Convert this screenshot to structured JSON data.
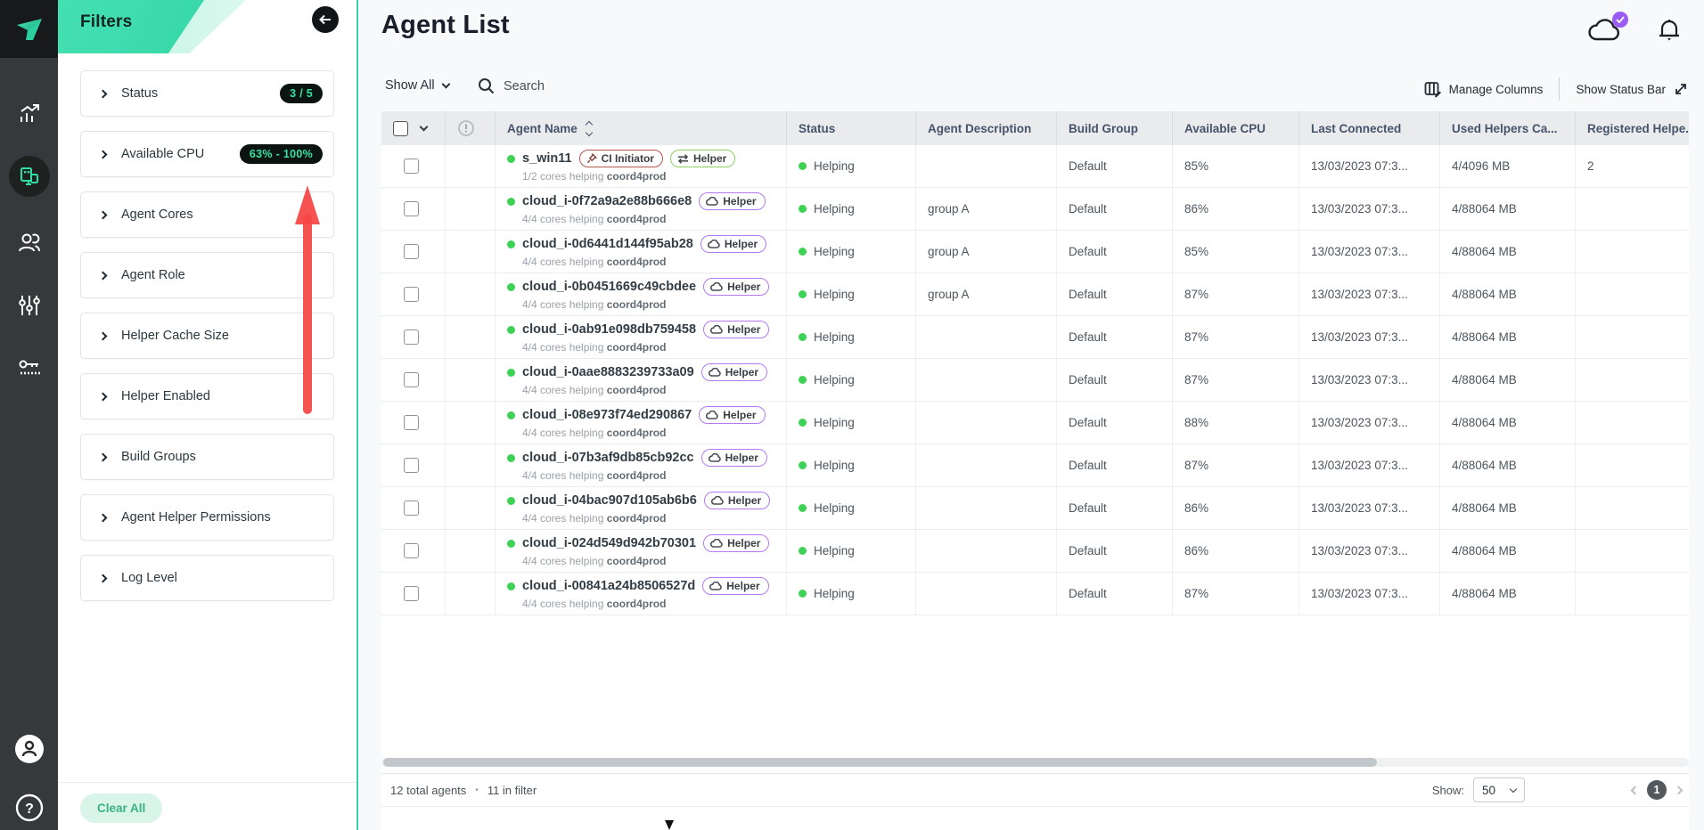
{
  "app": {
    "accent": "#35d9a6",
    "annotation_arrow_color": "#f54545",
    "badge_bg": "#0b1411",
    "badge_text": "#36e2a4",
    "status_green": "#3ed254",
    "helper_purple": "#b678f2",
    "helper_green": "#8ccf63",
    "ci_red": "#b3574a",
    "notification_badge_purple": "#9b5cf6"
  },
  "rail": {
    "items": [
      {
        "icon": "analytics-icon",
        "active": false
      },
      {
        "icon": "agents-icon",
        "active": true
      },
      {
        "icon": "users-icon",
        "active": false
      },
      {
        "icon": "sliders-icon",
        "active": false
      },
      {
        "icon": "api-keys-icon",
        "active": false
      }
    ],
    "bottom": [
      {
        "icon": "user-avatar-icon"
      },
      {
        "icon": "help-icon"
      }
    ]
  },
  "filters": {
    "title": "Filters",
    "clear_all": "Clear All",
    "items": [
      {
        "label": "Status",
        "badge": "3 / 5"
      },
      {
        "label": "Available CPU",
        "badge": "63% - 100%"
      },
      {
        "label": "Agent Cores",
        "badge": ""
      },
      {
        "label": "Agent Role",
        "badge": ""
      },
      {
        "label": "Helper Cache Size",
        "badge": ""
      },
      {
        "label": "Helper Enabled",
        "badge": ""
      },
      {
        "label": "Build Groups",
        "badge": ""
      },
      {
        "label": "Agent Helper Permissions",
        "badge": ""
      },
      {
        "label": "Log Level",
        "badge": ""
      }
    ]
  },
  "header": {
    "title": "Agent List"
  },
  "toolbar": {
    "show_all": "Show All",
    "search_placeholder": "Search",
    "manage_columns": "Manage Columns",
    "show_status_bar": "Show Status Bar"
  },
  "table": {
    "columns": [
      "",
      "",
      "Agent Name",
      "Status",
      "Agent Description",
      "Build Group",
      "Available CPU",
      "Last Connected",
      "Used Helpers Ca...",
      "Registered Helpe.."
    ],
    "rows": [
      {
        "name": "s_win11",
        "badges": [
          {
            "icon": "pin-icon",
            "label": "CI Initiator",
            "style": "ci"
          },
          {
            "icon": "swap-arrows-icon",
            "label": "Helper",
            "style": "hg"
          }
        ],
        "cores": "1/2 cores helping",
        "target": "coord4prod",
        "status": "Helping",
        "description": "",
        "build_group": "Default",
        "cpu": "85%",
        "last_connected": "13/03/2023 07:3...",
        "used_helpers": "4/4096 MB",
        "registered": "2"
      },
      {
        "name": "cloud_i-0f72a9a2e88b666e8",
        "badges": [
          {
            "icon": "cloud-icon",
            "label": "Helper",
            "style": "hp"
          }
        ],
        "cores": "4/4 cores helping",
        "target": "coord4prod",
        "status": "Helping",
        "description": "group A",
        "build_group": "Default",
        "cpu": "86%",
        "last_connected": "13/03/2023 07:3...",
        "used_helpers": "4/88064 MB",
        "registered": ""
      },
      {
        "name": "cloud_i-0d6441d144f95ab28",
        "badges": [
          {
            "icon": "cloud-icon",
            "label": "Helper",
            "style": "hp"
          }
        ],
        "cores": "4/4 cores helping",
        "target": "coord4prod",
        "status": "Helping",
        "description": "group A",
        "build_group": "Default",
        "cpu": "85%",
        "last_connected": "13/03/2023 07:3...",
        "used_helpers": "4/88064 MB",
        "registered": ""
      },
      {
        "name": "cloud_i-0b0451669c49cbdee",
        "badges": [
          {
            "icon": "cloud-icon",
            "label": "Helper",
            "style": "hp"
          }
        ],
        "cores": "4/4 cores helping",
        "target": "coord4prod",
        "status": "Helping",
        "description": "group A",
        "build_group": "Default",
        "cpu": "87%",
        "last_connected": "13/03/2023 07:3...",
        "used_helpers": "4/88064 MB",
        "registered": ""
      },
      {
        "name": "cloud_i-0ab91e098db759458",
        "badges": [
          {
            "icon": "cloud-icon",
            "label": "Helper",
            "style": "hp"
          }
        ],
        "cores": "4/4 cores helping",
        "target": "coord4prod",
        "status": "Helping",
        "description": "",
        "build_group": "Default",
        "cpu": "87%",
        "last_connected": "13/03/2023 07:3...",
        "used_helpers": "4/88064 MB",
        "registered": ""
      },
      {
        "name": "cloud_i-0aae8883239733a09",
        "badges": [
          {
            "icon": "cloud-icon",
            "label": "Helper",
            "style": "hp"
          }
        ],
        "cores": "4/4 cores helping",
        "target": "coord4prod",
        "status": "Helping",
        "description": "",
        "build_group": "Default",
        "cpu": "87%",
        "last_connected": "13/03/2023 07:3...",
        "used_helpers": "4/88064 MB",
        "registered": ""
      },
      {
        "name": "cloud_i-08e973f74ed290867",
        "badges": [
          {
            "icon": "cloud-icon",
            "label": "Helper",
            "style": "hp"
          }
        ],
        "cores": "4/4 cores helping",
        "target": "coord4prod",
        "status": "Helping",
        "description": "",
        "build_group": "Default",
        "cpu": "88%",
        "last_connected": "13/03/2023 07:3...",
        "used_helpers": "4/88064 MB",
        "registered": ""
      },
      {
        "name": "cloud_i-07b3af9db85cb92cc",
        "badges": [
          {
            "icon": "cloud-icon",
            "label": "Helper",
            "style": "hp"
          }
        ],
        "cores": "4/4 cores helping",
        "target": "coord4prod",
        "status": "Helping",
        "description": "",
        "build_group": "Default",
        "cpu": "87%",
        "last_connected": "13/03/2023 07:3...",
        "used_helpers": "4/88064 MB",
        "registered": ""
      },
      {
        "name": "cloud_i-04bac907d105ab6b6",
        "badges": [
          {
            "icon": "cloud-icon",
            "label": "Helper",
            "style": "hp"
          }
        ],
        "cores": "4/4 cores helping",
        "target": "coord4prod",
        "status": "Helping",
        "description": "",
        "build_group": "Default",
        "cpu": "86%",
        "last_connected": "13/03/2023 07:3...",
        "used_helpers": "4/88064 MB",
        "registered": ""
      },
      {
        "name": "cloud_i-024d549d942b70301",
        "badges": [
          {
            "icon": "cloud-icon",
            "label": "Helper",
            "style": "hp"
          }
        ],
        "cores": "4/4 cores helping",
        "target": "coord4prod",
        "status": "Helping",
        "description": "",
        "build_group": "Default",
        "cpu": "86%",
        "last_connected": "13/03/2023 07:3...",
        "used_helpers": "4/88064 MB",
        "registered": ""
      },
      {
        "name": "cloud_i-00841a24b8506527d",
        "badges": [
          {
            "icon": "cloud-icon",
            "label": "Helper",
            "style": "hp"
          }
        ],
        "cores": "4/4 cores helping",
        "target": "coord4prod",
        "status": "Helping",
        "description": "",
        "build_group": "Default",
        "cpu": "87%",
        "last_connected": "13/03/2023 07:3...",
        "used_helpers": "4/88064 MB",
        "registered": ""
      }
    ]
  },
  "footer": {
    "total": "12 total agents",
    "separator": "•",
    "in_filter": "11 in filter",
    "show_label": "Show:",
    "page_size": "50",
    "page": "1"
  }
}
